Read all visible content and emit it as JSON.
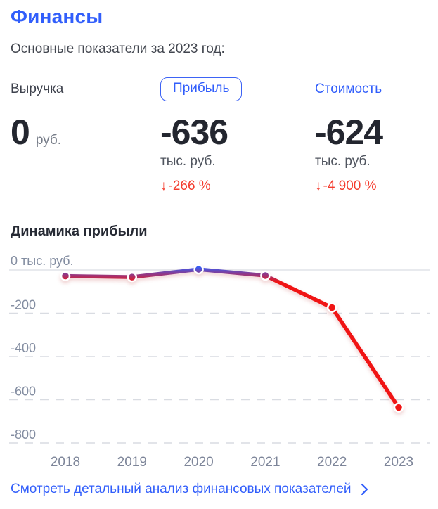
{
  "header": {
    "title": "Финансы",
    "subtitle": "Основные показатели за 2023 год:"
  },
  "metrics": {
    "revenue": {
      "label": "Выручка",
      "value": "0",
      "unit": "руб."
    },
    "profit": {
      "label": "Прибыль",
      "value": "-636",
      "unit": "тыс. руб.",
      "delta_arrow": "↓",
      "delta": "-266 %"
    },
    "worth": {
      "label": "Стоимость",
      "value": "-624",
      "unit": "тыс. руб.",
      "delta_arrow": "↓",
      "delta": "-4 900 %"
    }
  },
  "chart_data": {
    "type": "line",
    "title": "Динамика прибыли",
    "x": [
      "2018",
      "2019",
      "2020",
      "2021",
      "2022",
      "2023"
    ],
    "series": [
      {
        "name": "Прибыль, тыс. руб.",
        "values": [
          -28,
          -33,
          3,
          -26,
          -174,
          -636
        ]
      }
    ],
    "yticks": [
      0,
      -200,
      -400,
      -600,
      -800
    ],
    "ytick_labels": [
      "0 тыс. руб.",
      "-200",
      "-400",
      "-600",
      "-800"
    ],
    "ylim": [
      -850,
      50
    ],
    "grid": "horizontal-dashed",
    "legend": false,
    "colors": {
      "near_zero": "#315efb",
      "negative": "#f01414"
    }
  },
  "footer": {
    "link_label": "Смотреть детальный анализ финансовых показателей"
  },
  "colors": {
    "accent_blue": "#315efb",
    "alert_red": "#f43b2d",
    "chart_red": "#f01414",
    "heading_dark": "#23262f",
    "grid_gray": "#d9dce2"
  }
}
